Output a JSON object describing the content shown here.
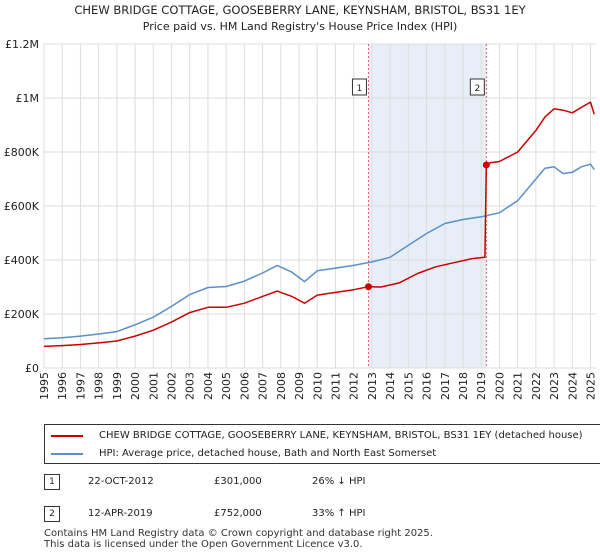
{
  "chart_data": {
    "type": "line",
    "title": "CHEW BRIDGE COTTAGE, GOOSEBERRY LANE, KEYNSHAM, BRISTOL, BS31 1EY",
    "subtitle": "Price paid vs. HM Land Registry's House Price Index (HPI)",
    "xlim": [
      1995,
      2025.3
    ],
    "ylim": [
      0,
      1200000
    ],
    "x_ticks": [
      "1995",
      "1996",
      "1997",
      "1998",
      "1999",
      "2000",
      "2001",
      "2002",
      "2003",
      "2004",
      "2005",
      "2006",
      "2007",
      "2008",
      "2009",
      "2010",
      "2011",
      "2012",
      "2013",
      "2014",
      "2015",
      "2016",
      "2017",
      "2018",
      "2019",
      "2020",
      "2021",
      "2022",
      "2023",
      "2024",
      "2025"
    ],
    "y_ticks": [
      {
        "value": 0,
        "label": "£0"
      },
      {
        "value": 200000,
        "label": "£200K"
      },
      {
        "value": 400000,
        "label": "£400K"
      },
      {
        "value": 600000,
        "label": "£600K"
      },
      {
        "value": 800000,
        "label": "£800K"
      },
      {
        "value": 1000000,
        "label": "£1M"
      },
      {
        "value": 1200000,
        "label": "£1.2M"
      }
    ],
    "grid": true,
    "series": [
      {
        "name": "CHEW BRIDGE COTTAGE, GOOSEBERRY LANE, KEYNSHAM, BRISTOL, BS31 1EY (detached house)",
        "color": "#cc0000",
        "x": [
          1995.0,
          1996.0,
          1997.0,
          1998.0,
          1999.0,
          2000.0,
          2001.0,
          2002.0,
          2003.0,
          2004.0,
          2005.0,
          2006.0,
          2007.0,
          2007.8,
          2008.6,
          2009.3,
          2010.0,
          2011.0,
          2012.0,
          2012.81,
          2013.5,
          2014.5,
          2015.5,
          2016.5,
          2017.5,
          2018.5,
          2019.2,
          2019.28,
          2019.5,
          2020.0,
          2021.0,
          2022.0,
          2022.5,
          2023.0,
          2023.5,
          2024.0,
          2024.5,
          2025.0,
          2025.2
        ],
        "y": [
          80000,
          83000,
          87000,
          93000,
          100000,
          118000,
          140000,
          170000,
          205000,
          225000,
          225000,
          240000,
          265000,
          285000,
          265000,
          240000,
          270000,
          280000,
          290000,
          301000,
          300000,
          315000,
          350000,
          375000,
          390000,
          405000,
          410000,
          752000,
          760000,
          765000,
          800000,
          880000,
          930000,
          960000,
          955000,
          945000,
          965000,
          985000,
          940000
        ]
      },
      {
        "name": "HPI: Average price, detached house, Bath and North East Somerset",
        "color": "#5b8fc9",
        "x": [
          1995.0,
          1996.0,
          1997.0,
          1998.0,
          1999.0,
          2000.0,
          2001.0,
          2002.0,
          2003.0,
          2004.0,
          2005.0,
          2006.0,
          2007.0,
          2007.8,
          2008.6,
          2009.3,
          2010.0,
          2011.0,
          2012.0,
          2013.0,
          2014.0,
          2015.0,
          2016.0,
          2017.0,
          2018.0,
          2019.0,
          2020.0,
          2021.0,
          2022.0,
          2022.5,
          2023.0,
          2023.5,
          2024.0,
          2024.5,
          2025.0,
          2025.2
        ],
        "y": [
          108000,
          112000,
          118000,
          126000,
          135000,
          160000,
          188000,
          228000,
          272000,
          298000,
          302000,
          322000,
          352000,
          380000,
          355000,
          320000,
          360000,
          370000,
          380000,
          393000,
          410000,
          455000,
          498000,
          535000,
          550000,
          560000,
          575000,
          620000,
          700000,
          740000,
          745000,
          720000,
          725000,
          745000,
          755000,
          735000
        ]
      }
    ],
    "sales": [
      {
        "label": "1",
        "x": 2012.81,
        "y": 301000
      },
      {
        "label": "2",
        "x": 2019.28,
        "y": 752000
      }
    ],
    "shaded_range": [
      2012.81,
      2019.28
    ]
  },
  "colors": {
    "property": "#cc0000",
    "hpi": "#5b8fc9",
    "grid": "#dddddd",
    "shade": "#e8eef8",
    "marker_line": "#e06060"
  },
  "legend": {
    "property_label": "CHEW BRIDGE COTTAGE, GOOSEBERRY LANE, KEYNSHAM, BRISTOL, BS31 1EY (detached house)",
    "hpi_label": "HPI: Average price, detached house, Bath and North East Somerset"
  },
  "transactions": [
    {
      "num": "1",
      "date": "22-OCT-2012",
      "price": "£301,000",
      "hpi": "26% ↓ HPI"
    },
    {
      "num": "2",
      "date": "12-APR-2019",
      "price": "£752,000",
      "hpi": "33% ↑ HPI"
    }
  ],
  "footer": {
    "line1": "Contains HM Land Registry data © Crown copyright and database right 2025.",
    "line2": "This data is licensed under the Open Government Licence v3.0."
  }
}
